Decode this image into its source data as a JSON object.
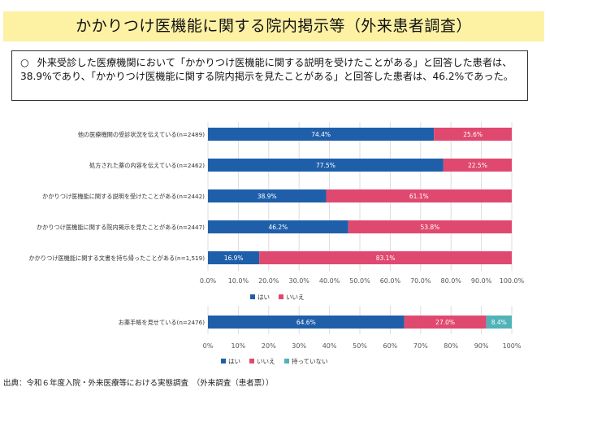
{
  "title": "かかりつけ医機能に関する院内掲示等（外来患者調査）",
  "summary": {
    "bullet": "○",
    "text": "外来受診した医療機関において「かかりつけ医機能に関する説明を受けたことがある」と回答した患者は、38.9%であり、「かかりつけ医機能に関する院内掲示を見たことがある」と回答した患者は、46.2%であった。"
  },
  "colors": {
    "yes": "#1f5faa",
    "no": "#e0496f",
    "not_carrying": "#4fb3b8",
    "grid": "#dddddd"
  },
  "chart_data": [
    {
      "type": "bar",
      "orientation": "horizontal",
      "stacked": true,
      "categories": [
        "他の医療機関の受診状況を伝えている(n=2489)",
        "処方された薬の内容を伝えている(n=2462)",
        "かかりつけ医機能に関する説明を受けたことがある(n=2442)",
        "かかりつけ医機能に関する院内掲示を見たことがある(n=2447)",
        "かかりつけ医機能に関する文書を持ち帰ったことがある(n=1,519)"
      ],
      "series": [
        {
          "name": "はい",
          "color": "#1f5faa",
          "values": [
            74.4,
            77.5,
            38.9,
            46.2,
            16.9
          ],
          "labels": [
            "74.4%",
            "77.5%",
            "38.9%",
            "46.2%",
            "16.9%"
          ]
        },
        {
          "name": "いいえ",
          "color": "#e0496f",
          "values": [
            25.6,
            22.5,
            61.1,
            53.8,
            83.1
          ],
          "labels": [
            "25.6%",
            "22.5%",
            "61.1%",
            "53.8%",
            "83.1%"
          ]
        }
      ],
      "xlim": [
        0,
        100
      ],
      "ticks": [
        "0.0%",
        "10.0%",
        "20.0%",
        "30.0%",
        "40.0%",
        "50.0%",
        "60.0%",
        "70.0%",
        "80.0%",
        "90.0%",
        "100.0%"
      ],
      "legend": [
        "はい",
        "いいえ"
      ],
      "legend_placement": "bottom"
    },
    {
      "type": "bar",
      "orientation": "horizontal",
      "stacked": true,
      "categories": [
        "お薬手帳を見せている(n=2476)"
      ],
      "series": [
        {
          "name": "はい",
          "color": "#1f5faa",
          "values": [
            64.6
          ],
          "labels": [
            "64.6%"
          ]
        },
        {
          "name": "いいえ",
          "color": "#e0496f",
          "values": [
            27.0
          ],
          "labels": [
            "27.0%"
          ]
        },
        {
          "name": "持っていない",
          "color": "#4fb3b8",
          "values": [
            8.4
          ],
          "labels": [
            "8.4%"
          ]
        }
      ],
      "xlim": [
        0,
        100
      ],
      "ticks": [
        "0%",
        "10%",
        "20%",
        "30%",
        "40%",
        "50%",
        "60%",
        "70%",
        "80%",
        "90%",
        "100%"
      ],
      "legend": [
        "はい",
        "いいえ",
        "持っていない"
      ],
      "legend_placement": "bottom"
    }
  ],
  "source": "出典：令和６年度入院・外来医療等における実態調査　（外来調査（患者票））"
}
